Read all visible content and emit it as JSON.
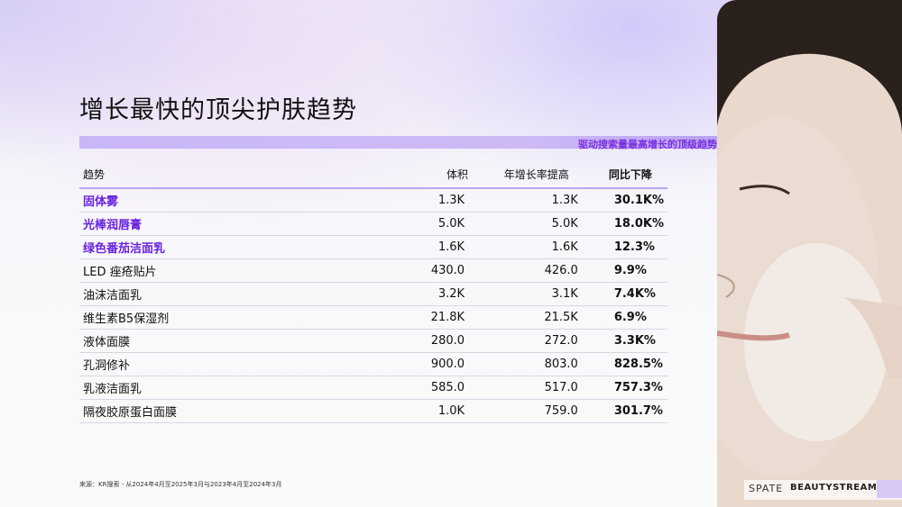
{
  "title": "增长最快的顶尖护肤趋势",
  "bar_label": "驱动搜索量最高增长的顶级趋势",
  "table": {
    "headers": [
      "趋势",
      "体积",
      "年增长率提高",
      "同比下降"
    ],
    "rows": [
      {
        "name": "固体雾",
        "volume": "1.3K",
        "growth": "1.3K",
        "yoy": "30.1K%",
        "highlight": true
      },
      {
        "name": "光棒润唇膏",
        "volume": "5.0K",
        "growth": "5.0K",
        "yoy": "18.0K%",
        "highlight": true
      },
      {
        "name": "绿色番茄洁面乳",
        "volume": "1.6K",
        "growth": "1.6K",
        "yoy": "12.3%",
        "highlight": true
      },
      {
        "name": "LED 痤疮贴片",
        "volume": "430.0",
        "growth": "426.0",
        "yoy": "9.9%",
        "highlight": false
      },
      {
        "name": "油沫洁面乳",
        "volume": "3.2K",
        "growth": "3.1K",
        "yoy": "7.4K%",
        "highlight": false
      },
      {
        "name": "维生素B5保湿剂",
        "volume": "21.8K",
        "growth": "21.5K",
        "yoy": "6.9%",
        "highlight": false
      },
      {
        "name": "液体面膜",
        "volume": "280.0",
        "growth": "272.0",
        "yoy": "3.3K%",
        "highlight": false
      },
      {
        "name": "孔洞修补",
        "volume": "900.0",
        "growth": "803.0",
        "yoy": "828.5%",
        "highlight": false
      },
      {
        "name": "乳液洁面乳",
        "volume": "585.0",
        "growth": "517.0",
        "yoy": "757.3%",
        "highlight": false
      },
      {
        "name": "隔夜胶原蛋白面膜",
        "volume": "1.0K",
        "growth": "759.0",
        "yoy": "301.7%",
        "highlight": false
      }
    ]
  },
  "source": "来源：KR搜索 - 从2024年4月至2025年3月与2023年4月至2024年3月",
  "logos": {
    "left": "SPATE",
    "right": "BEAUTYSTREAMS"
  },
  "colors": {
    "accent": "#6a24e0",
    "bar": "#c9b6f6"
  }
}
